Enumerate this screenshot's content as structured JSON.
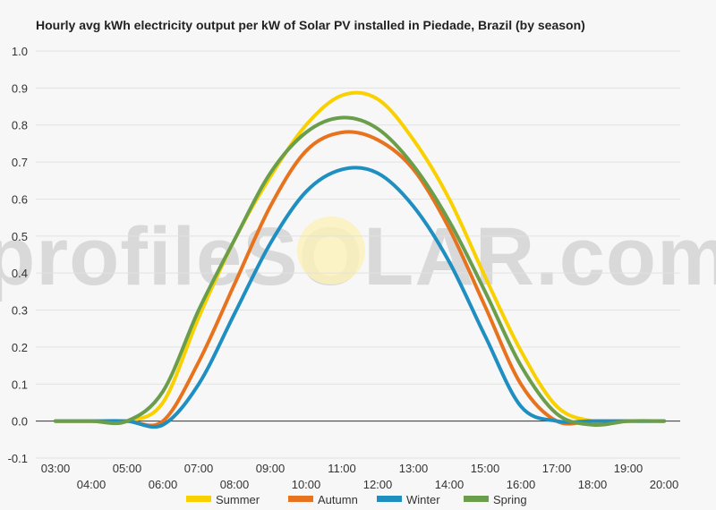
{
  "chart_data": {
    "type": "line",
    "title": "Hourly avg kWh electricity output per kW of Solar PV installed in Piedade, Brazil (by season)",
    "xlabel": "",
    "ylabel": "",
    "x": [
      "03:00",
      "04:00",
      "05:00",
      "06:00",
      "07:00",
      "08:00",
      "09:00",
      "10:00",
      "11:00",
      "12:00",
      "13:00",
      "14:00",
      "15:00",
      "16:00",
      "17:00",
      "18:00",
      "19:00",
      "20:00"
    ],
    "ylim": [
      -0.1,
      1.0
    ],
    "yticks": [
      "-0.1",
      "0.0",
      "0.1",
      "0.2",
      "0.3",
      "0.4",
      "0.5",
      "0.6",
      "0.7",
      "0.8",
      "0.9",
      "1.0"
    ],
    "grid": true,
    "legend": "bottom",
    "watermark": "profileSOLAR.com",
    "series": [
      {
        "name": "Summer",
        "color": "#f9d000",
        "values": [
          0.0,
          0.0,
          0.0,
          0.05,
          0.28,
          0.49,
          0.66,
          0.8,
          0.88,
          0.87,
          0.76,
          0.6,
          0.39,
          0.19,
          0.04,
          0.0,
          0.0,
          0.0
        ]
      },
      {
        "name": "Autumn",
        "color": "#e8731f",
        "values": [
          0.0,
          0.0,
          0.0,
          0.0,
          0.16,
          0.37,
          0.58,
          0.73,
          0.78,
          0.76,
          0.68,
          0.52,
          0.31,
          0.1,
          0.0,
          0.0,
          0.0,
          0.0
        ]
      },
      {
        "name": "Winter",
        "color": "#1f8fc1",
        "values": [
          0.0,
          0.0,
          0.0,
          -0.01,
          0.1,
          0.29,
          0.48,
          0.62,
          0.68,
          0.67,
          0.58,
          0.43,
          0.23,
          0.04,
          0.0,
          0.0,
          0.0,
          0.0
        ]
      },
      {
        "name": "Spring",
        "color": "#6b9e4b",
        "values": [
          0.0,
          0.0,
          0.0,
          0.08,
          0.3,
          0.49,
          0.67,
          0.78,
          0.82,
          0.79,
          0.69,
          0.54,
          0.35,
          0.15,
          0.02,
          -0.01,
          0.0,
          0.0
        ]
      }
    ]
  }
}
